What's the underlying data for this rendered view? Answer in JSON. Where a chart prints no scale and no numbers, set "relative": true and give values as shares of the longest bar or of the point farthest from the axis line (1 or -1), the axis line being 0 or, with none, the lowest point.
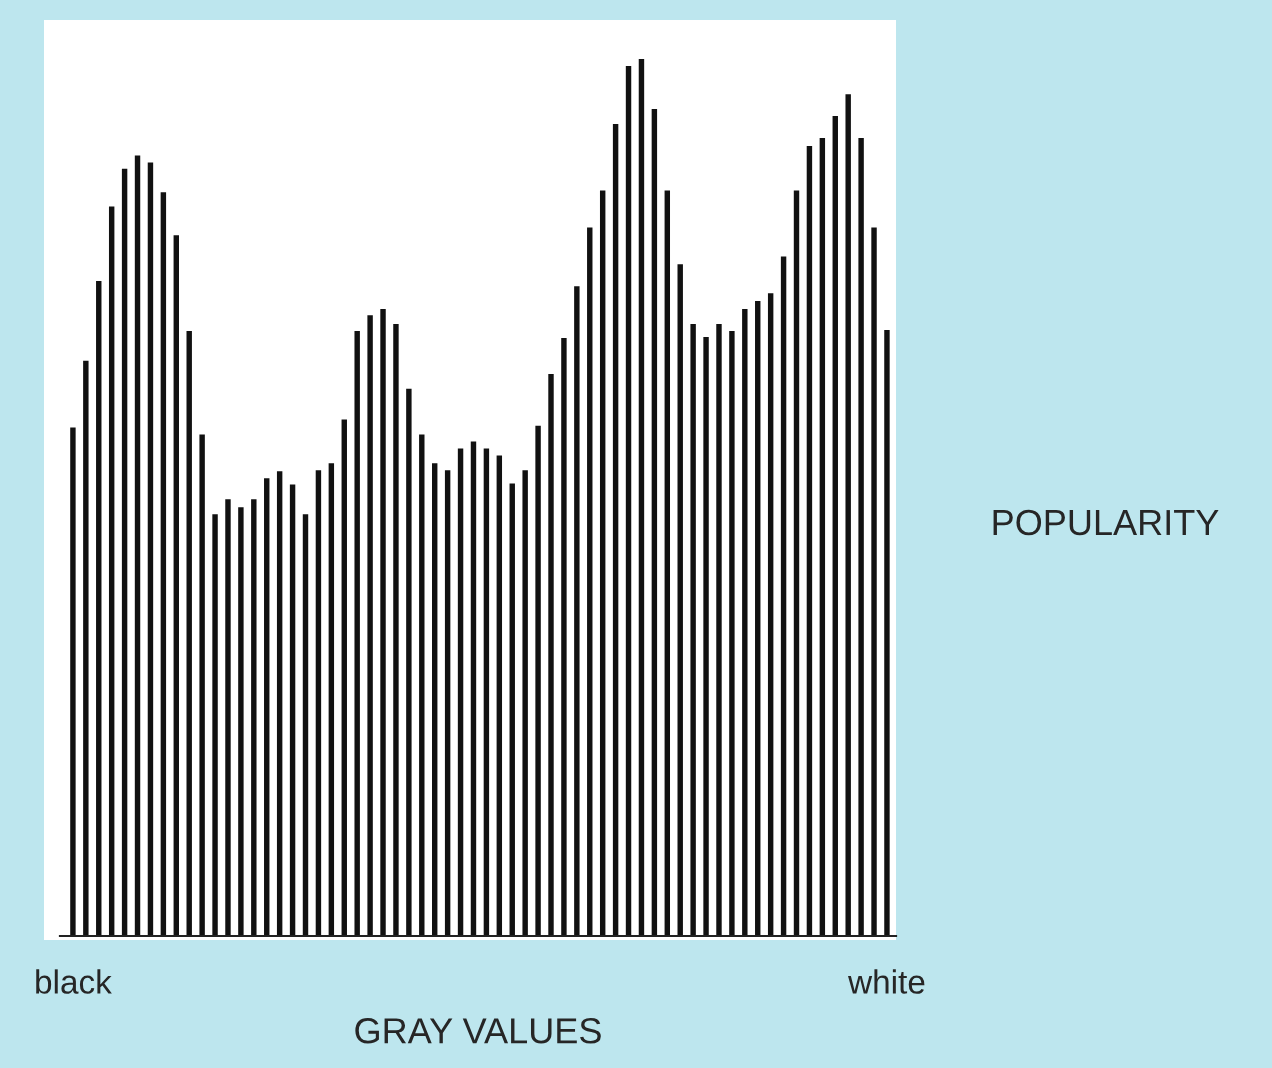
{
  "chart_data": {
    "type": "bar",
    "relative": true,
    "xlabel": "GRAY VALUES",
    "ylabel": "POPULARITY",
    "categories": [
      "black",
      null,
      null,
      null,
      null,
      null,
      null,
      null,
      null,
      null,
      null,
      null,
      null,
      null,
      null,
      null,
      null,
      null,
      null,
      null,
      null,
      null,
      null,
      null,
      null,
      null,
      null,
      null,
      null,
      null,
      null,
      null,
      null,
      null,
      null,
      null,
      null,
      null,
      null,
      null,
      null,
      null,
      null,
      null,
      null,
      null,
      null,
      null,
      null,
      null,
      null,
      null,
      null,
      null,
      null,
      null,
      null,
      null,
      null,
      null,
      null,
      null,
      null,
      "white"
    ],
    "color": "#111111",
    "values": [
      0.58,
      0.656,
      0.747,
      0.832,
      0.875,
      0.89,
      0.882,
      0.848,
      0.799,
      0.69,
      0.572,
      0.481,
      0.498,
      0.489,
      0.498,
      0.522,
      0.53,
      0.515,
      0.481,
      0.531,
      0.539,
      0.589,
      0.69,
      0.708,
      0.715,
      0.698,
      0.624,
      0.572,
      0.539,
      0.531,
      0.556,
      0.564,
      0.556,
      0.548,
      0.516,
      0.531,
      0.582,
      0.641,
      0.682,
      0.741,
      0.808,
      0.85,
      0.926,
      0.992,
      1.0,
      0.943,
      0.85,
      0.766,
      0.698,
      0.683,
      0.698,
      0.69,
      0.715,
      0.724,
      0.733,
      0.775,
      0.85,
      0.901,
      0.91,
      0.935,
      0.96,
      0.91,
      0.808,
      0.691
    ],
    "grid": false,
    "legend": false
  }
}
